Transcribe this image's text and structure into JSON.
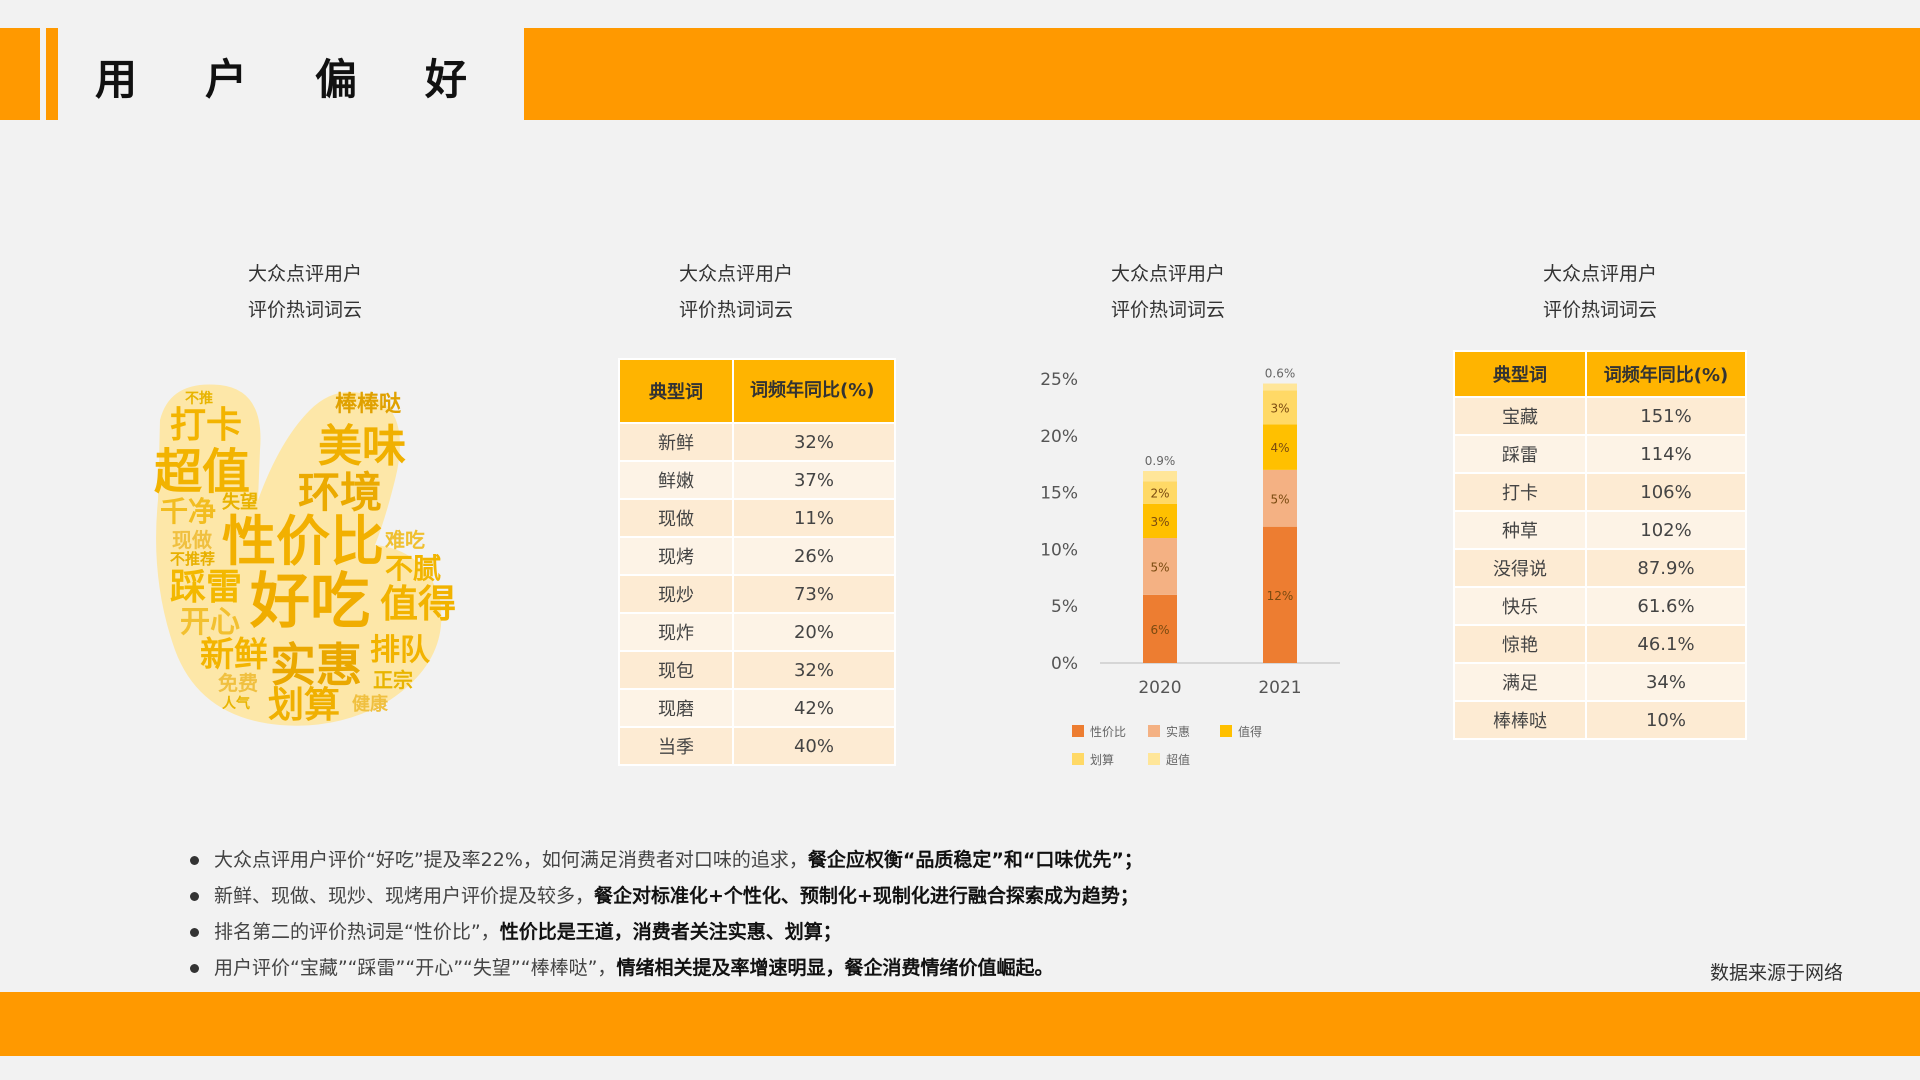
{
  "header": {
    "title_chars": [
      "用",
      "户",
      "偏",
      "好"
    ]
  },
  "columns": [
    {
      "title_line1": "大众点评用户",
      "title_line2": "评价热词词云"
    },
    {
      "title_line1": "大众点评用户",
      "title_line2": "评价热词词云"
    },
    {
      "title_line1": "大众点评用户",
      "title_line2": "评价热词词云"
    },
    {
      "title_line1": "大众点评用户",
      "title_line2": "评价热词词云"
    }
  ],
  "wordcloud": {
    "words": [
      "打卡",
      "棒棒哒",
      "美味",
      "超值",
      "环境",
      "千净",
      "失望",
      "现做",
      "性价比",
      "难吃",
      "不推荐",
      "不腻",
      "踩雷",
      "好吃",
      "值得",
      "开心",
      "新鲜",
      "实惠",
      "排队",
      "免费",
      "正宗",
      "人气",
      "划算",
      "健康",
      "不推"
    ]
  },
  "table1": {
    "headers": [
      "典型词",
      "词频年同比(%)"
    ],
    "rows": [
      [
        "新鲜",
        "32%"
      ],
      [
        "鲜嫩",
        "37%"
      ],
      [
        "现做",
        "11%"
      ],
      [
        "现烤",
        "26%"
      ],
      [
        "现炒",
        "73%"
      ],
      [
        "现炸",
        "20%"
      ],
      [
        "现包",
        "32%"
      ],
      [
        "现磨",
        "42%"
      ],
      [
        "当季",
        "40%"
      ]
    ]
  },
  "chart_data": {
    "type": "bar",
    "stacked": true,
    "categories": [
      "2020",
      "2021"
    ],
    "yticks": [
      "0%",
      "5%",
      "10%",
      "15%",
      "20%",
      "25%"
    ],
    "ylim": [
      0,
      25
    ],
    "series": [
      {
        "name": "性价比",
        "values": [
          6,
          12
        ],
        "labels": [
          "6%",
          "12%"
        ],
        "color": "#ed7d31"
      },
      {
        "name": "实惠",
        "values": [
          5,
          5
        ],
        "labels": [
          "5%",
          "5%"
        ],
        "color": "#f4b183"
      },
      {
        "name": "值得",
        "values": [
          3,
          4
        ],
        "labels": [
          "3%",
          "4%"
        ],
        "color": "#ffc000"
      },
      {
        "name": "划算",
        "values": [
          2,
          3
        ],
        "labels": [
          "2%",
          "3%"
        ],
        "color": "#ffd966"
      },
      {
        "name": "超值",
        "values": [
          0.9,
          0.6
        ],
        "labels": [
          "0.9%",
          "0.6%"
        ],
        "color": "#ffe699"
      }
    ],
    "legend_position": "bottom"
  },
  "table2": {
    "headers": [
      "典型词",
      "词频年同比(%)"
    ],
    "rows": [
      [
        "宝藏",
        "151%"
      ],
      [
        "踩雷",
        "114%"
      ],
      [
        "打卡",
        "106%"
      ],
      [
        "种草",
        "102%"
      ],
      [
        "没得说",
        "87.9%"
      ],
      [
        "快乐",
        "61.6%"
      ],
      [
        "惊艳",
        "46.1%"
      ],
      [
        "满足",
        "34%"
      ],
      [
        "棒棒哒",
        "10%"
      ]
    ]
  },
  "bullets": [
    {
      "normal": "大众点评用户评价“好吃”提及率22%，如何满足消费者对口味的追求，",
      "bold": "餐企应权衡“品质稳定”和“口味优先”；"
    },
    {
      "normal": "新鲜、现做、现炒、现烤用户评价提及较多，",
      "bold": "餐企对标准化+个性化、预制化+现制化进行融合探索成为趋势；"
    },
    {
      "normal": "排名第二的评价热词是“性价比”，",
      "bold": "性价比是王道，消费者关注实惠、划算；"
    },
    {
      "normal": "用户评价“宝藏”“踩雷”“开心”“失望”“棒棒哒”，",
      "bold": "情绪相关提及率增速明显，餐企消费情绪价值崛起。"
    }
  ],
  "source": "数据来源于网络",
  "colors": {
    "accent": "#ff9900",
    "table_header": "#ffb400"
  }
}
